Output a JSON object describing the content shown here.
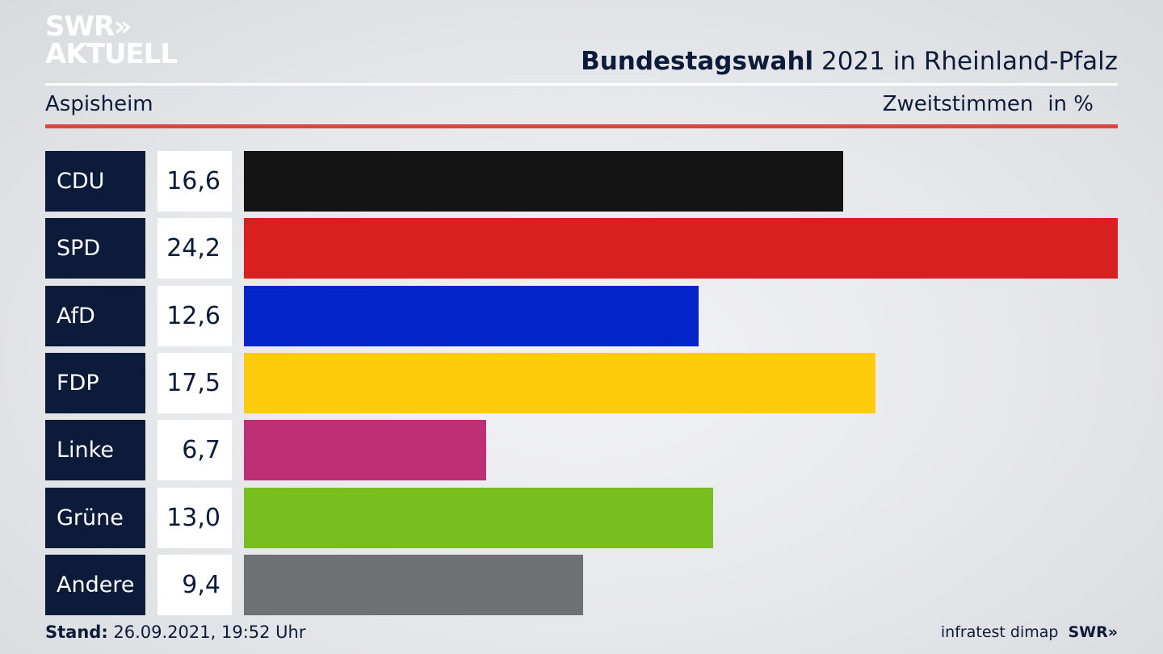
{
  "logo": {
    "line1": "SWR",
    "arrows": "»",
    "line2": "AKTUELL"
  },
  "header": {
    "title_bold": "Bundestagswahl",
    "title_rest": " 2021 in Rheinland-Pfalz",
    "location": "Aspisheim",
    "measure": "Zweitstimmen",
    "unit": "in %"
  },
  "chart_data": {
    "type": "bar",
    "orientation": "horizontal",
    "title": "Bundestagswahl 2021 in Rheinland-Pfalz",
    "subtitle": "Aspisheim",
    "ylabel": "Zweitstimmen in %",
    "categories": [
      "CDU",
      "SPD",
      "AfD",
      "FDP",
      "Linke",
      "Grüne",
      "Andere"
    ],
    "values": [
      16.6,
      24.2,
      12.6,
      17.5,
      6.7,
      13.0,
      9.4
    ],
    "value_labels": [
      "16,6",
      "24,2",
      "12,6",
      "17,5",
      "6,7",
      "13,0",
      "9,4"
    ],
    "colors": [
      "#141414",
      "#d82020",
      "#0324c8",
      "#fecc0a",
      "#be3075",
      "#78be1e",
      "#707173"
    ],
    "xlim": [
      0,
      24.2
    ],
    "grid": false,
    "legend": "none"
  },
  "footer": {
    "stand_label": "Stand:",
    "stand_value": " 26.09.2021, 19:52 Uhr",
    "source": "infratest dimap",
    "source_logo": "SWR»"
  }
}
